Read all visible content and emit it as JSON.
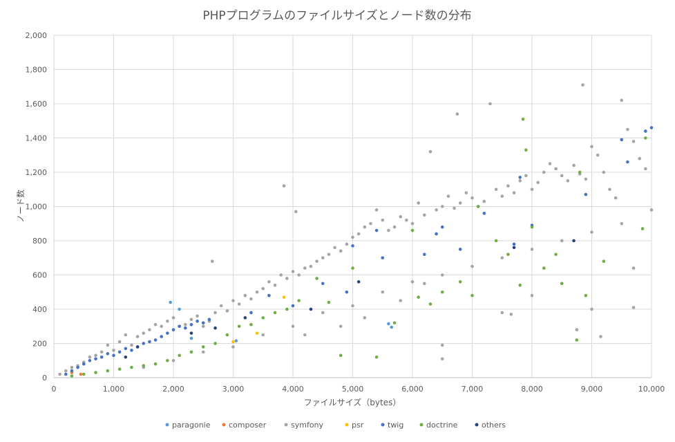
{
  "chart_data": {
    "type": "scatter",
    "title": "PHPプログラムのファイルサイズとノード数の分布",
    "xlabel": "ファイルサイズ（bytes）",
    "ylabel": "ノード数",
    "xlim": [
      0,
      10000
    ],
    "ylim": [
      0,
      2000
    ],
    "x_ticks": [
      "0",
      "1,000",
      "2,000",
      "3,000",
      "4,000",
      "5,000",
      "6,000",
      "7,000",
      "8,000",
      "9,000",
      "10,000"
    ],
    "y_ticks": [
      "0",
      "200",
      "400",
      "600",
      "800",
      "1,000",
      "1,200",
      "1,400",
      "1,600",
      "1,800",
      "2,000"
    ],
    "grid": true,
    "legend_position": "bottom",
    "series": [
      {
        "name": "paragonie",
        "color": "#5B9BD5",
        "points": [
          [
            1950,
            440
          ],
          [
            2100,
            400
          ],
          [
            5600,
            315
          ],
          [
            5650,
            295
          ],
          [
            3050,
            215
          ],
          [
            2300,
            230
          ]
        ]
      },
      {
        "name": "composer",
        "color": "#ED7D31",
        "points": [
          [
            300,
            30
          ],
          [
            450,
            20
          ]
        ]
      },
      {
        "name": "symfony",
        "color": "#A5A5A5",
        "points": [
          [
            100,
            20
          ],
          [
            200,
            40
          ],
          [
            300,
            60
          ],
          [
            400,
            70
          ],
          [
            500,
            90
          ],
          [
            600,
            120
          ],
          [
            700,
            130
          ],
          [
            800,
            150
          ],
          [
            900,
            190
          ],
          [
            1000,
            160
          ],
          [
            1100,
            210
          ],
          [
            1200,
            250
          ],
          [
            1300,
            190
          ],
          [
            1400,
            240
          ],
          [
            1500,
            260
          ],
          [
            1600,
            280
          ],
          [
            1700,
            310
          ],
          [
            1800,
            300
          ],
          [
            1900,
            330
          ],
          [
            2000,
            350
          ],
          [
            2100,
            300
          ],
          [
            2200,
            310
          ],
          [
            2300,
            340
          ],
          [
            2400,
            360
          ],
          [
            2500,
            300
          ],
          [
            2600,
            330
          ],
          [
            2650,
            680
          ],
          [
            2700,
            380
          ],
          [
            2800,
            420
          ],
          [
            2900,
            390
          ],
          [
            3000,
            450
          ],
          [
            3100,
            430
          ],
          [
            3200,
            480
          ],
          [
            3300,
            460
          ],
          [
            3400,
            500
          ],
          [
            3500,
            520
          ],
          [
            3600,
            560
          ],
          [
            3700,
            540
          ],
          [
            3800,
            600
          ],
          [
            3850,
            1120
          ],
          [
            3900,
            580
          ],
          [
            4000,
            620
          ],
          [
            4050,
            970
          ],
          [
            4100,
            600
          ],
          [
            4200,
            640
          ],
          [
            4300,
            650
          ],
          [
            4400,
            680
          ],
          [
            4500,
            700
          ],
          [
            4600,
            720
          ],
          [
            4700,
            760
          ],
          [
            4800,
            740
          ],
          [
            4900,
            780
          ],
          [
            5000,
            820
          ],
          [
            5100,
            840
          ],
          [
            5200,
            880
          ],
          [
            5300,
            900
          ],
          [
            5400,
            980
          ],
          [
            5500,
            920
          ],
          [
            5600,
            860
          ],
          [
            5700,
            880
          ],
          [
            5800,
            940
          ],
          [
            5900,
            920
          ],
          [
            6000,
            900
          ],
          [
            6100,
            1020
          ],
          [
            6200,
            950
          ],
          [
            6300,
            1320
          ],
          [
            6400,
            980
          ],
          [
            6500,
            1000
          ],
          [
            6600,
            1060
          ],
          [
            6700,
            990
          ],
          [
            6750,
            1540
          ],
          [
            6800,
            1020
          ],
          [
            6900,
            1080
          ],
          [
            7000,
            1050
          ],
          [
            7100,
            1000
          ],
          [
            7200,
            1030
          ],
          [
            7300,
            1600
          ],
          [
            7400,
            1100
          ],
          [
            7500,
            1060
          ],
          [
            7600,
            1120
          ],
          [
            7700,
            1080
          ],
          [
            7800,
            1150
          ],
          [
            7900,
            1180
          ],
          [
            8000,
            1100
          ],
          [
            8100,
            1140
          ],
          [
            8200,
            1200
          ],
          [
            8300,
            1250
          ],
          [
            8400,
            1220
          ],
          [
            8500,
            1180
          ],
          [
            8600,
            1150
          ],
          [
            8700,
            1240
          ],
          [
            8800,
            1190
          ],
          [
            8850,
            1710
          ],
          [
            8900,
            1160
          ],
          [
            9000,
            1350
          ],
          [
            9100,
            1300
          ],
          [
            9200,
            1200
          ],
          [
            9300,
            1100
          ],
          [
            9400,
            1050
          ],
          [
            9500,
            1620
          ],
          [
            9600,
            1450
          ],
          [
            9700,
            1380
          ],
          [
            9800,
            1280
          ],
          [
            9900,
            1220
          ],
          [
            10000,
            980
          ],
          [
            1500,
            60
          ],
          [
            2000,
            100
          ],
          [
            2500,
            150
          ],
          [
            3000,
            180
          ],
          [
            3500,
            250
          ],
          [
            4000,
            300
          ],
          [
            4500,
            380
          ],
          [
            5000,
            420
          ],
          [
            5500,
            500
          ],
          [
            6000,
            560
          ],
          [
            6500,
            600
          ],
          [
            7000,
            650
          ],
          [
            7500,
            700
          ],
          [
            8000,
            750
          ],
          [
            8500,
            800
          ],
          [
            9000,
            850
          ],
          [
            9500,
            900
          ],
          [
            4200,
            250
          ],
          [
            4800,
            300
          ],
          [
            5200,
            350
          ],
          [
            5800,
            450
          ],
          [
            6200,
            550
          ],
          [
            6500,
            110
          ],
          [
            6500,
            190
          ],
          [
            7500,
            380
          ],
          [
            7650,
            370
          ],
          [
            8000,
            480
          ],
          [
            8500,
            550
          ],
          [
            9000,
            400
          ],
          [
            9150,
            240
          ],
          [
            9700,
            410
          ],
          [
            9700,
            640
          ],
          [
            8750,
            280
          ]
        ]
      },
      {
        "name": "psr",
        "color": "#FFC000",
        "points": [
          [
            3000,
            210
          ],
          [
            3850,
            470
          ],
          [
            3400,
            260
          ]
        ]
      },
      {
        "name": "twig",
        "color": "#4472C4",
        "points": [
          [
            200,
            20
          ],
          [
            300,
            40
          ],
          [
            400,
            60
          ],
          [
            500,
            80
          ],
          [
            600,
            100
          ],
          [
            700,
            110
          ],
          [
            800,
            120
          ],
          [
            900,
            140
          ],
          [
            1000,
            130
          ],
          [
            1100,
            150
          ],
          [
            1200,
            170
          ],
          [
            1300,
            160
          ],
          [
            1400,
            180
          ],
          [
            1500,
            200
          ],
          [
            1600,
            210
          ],
          [
            1700,
            220
          ],
          [
            1800,
            240
          ],
          [
            1900,
            260
          ],
          [
            2000,
            280
          ],
          [
            2100,
            300
          ],
          [
            2200,
            290
          ],
          [
            2300,
            310
          ],
          [
            2400,
            330
          ],
          [
            2500,
            320
          ],
          [
            2600,
            340
          ],
          [
            3300,
            380
          ],
          [
            3600,
            480
          ],
          [
            4000,
            420
          ],
          [
            4500,
            550
          ],
          [
            4900,
            500
          ],
          [
            5000,
            770
          ],
          [
            5400,
            860
          ],
          [
            5500,
            700
          ],
          [
            6200,
            720
          ],
          [
            6400,
            840
          ],
          [
            6500,
            880
          ],
          [
            7200,
            960
          ],
          [
            7800,
            1170
          ],
          [
            8000,
            890
          ],
          [
            8900,
            1070
          ],
          [
            9500,
            1390
          ],
          [
            9600,
            1260
          ],
          [
            10000,
            1460
          ],
          [
            9900,
            1440
          ],
          [
            7700,
            780
          ],
          [
            6800,
            750
          ]
        ]
      },
      {
        "name": "doctrine",
        "color": "#70AD47",
        "points": [
          [
            300,
            10
          ],
          [
            500,
            20
          ],
          [
            700,
            30
          ],
          [
            900,
            40
          ],
          [
            1100,
            50
          ],
          [
            1300,
            60
          ],
          [
            1500,
            70
          ],
          [
            1700,
            80
          ],
          [
            1900,
            100
          ],
          [
            2100,
            130
          ],
          [
            2300,
            150
          ],
          [
            2500,
            180
          ],
          [
            2700,
            200
          ],
          [
            2900,
            250
          ],
          [
            3100,
            300
          ],
          [
            3300,
            310
          ],
          [
            3500,
            350
          ],
          [
            3700,
            380
          ],
          [
            3900,
            400
          ],
          [
            4100,
            450
          ],
          [
            4400,
            580
          ],
          [
            4600,
            440
          ],
          [
            4800,
            130
          ],
          [
            5000,
            640
          ],
          [
            5400,
            120
          ],
          [
            5700,
            320
          ],
          [
            6000,
            860
          ],
          [
            6100,
            470
          ],
          [
            6300,
            430
          ],
          [
            6500,
            500
          ],
          [
            6800,
            560
          ],
          [
            7000,
            480
          ],
          [
            7100,
            1000
          ],
          [
            7400,
            800
          ],
          [
            7600,
            720
          ],
          [
            7800,
            540
          ],
          [
            7850,
            1510
          ],
          [
            7900,
            1330
          ],
          [
            8000,
            880
          ],
          [
            8200,
            640
          ],
          [
            8400,
            720
          ],
          [
            8500,
            550
          ],
          [
            8750,
            220
          ],
          [
            8800,
            1200
          ],
          [
            8900,
            480
          ],
          [
            9200,
            680
          ],
          [
            9850,
            870
          ],
          [
            9900,
            1400
          ]
        ]
      },
      {
        "name": "others",
        "color": "#264478",
        "points": [
          [
            1200,
            120
          ],
          [
            1400,
            180
          ],
          [
            2300,
            260
          ],
          [
            2700,
            290
          ],
          [
            3200,
            350
          ],
          [
            4300,
            400
          ],
          [
            5100,
            560
          ],
          [
            7700,
            760
          ],
          [
            8700,
            800
          ]
        ]
      }
    ]
  }
}
